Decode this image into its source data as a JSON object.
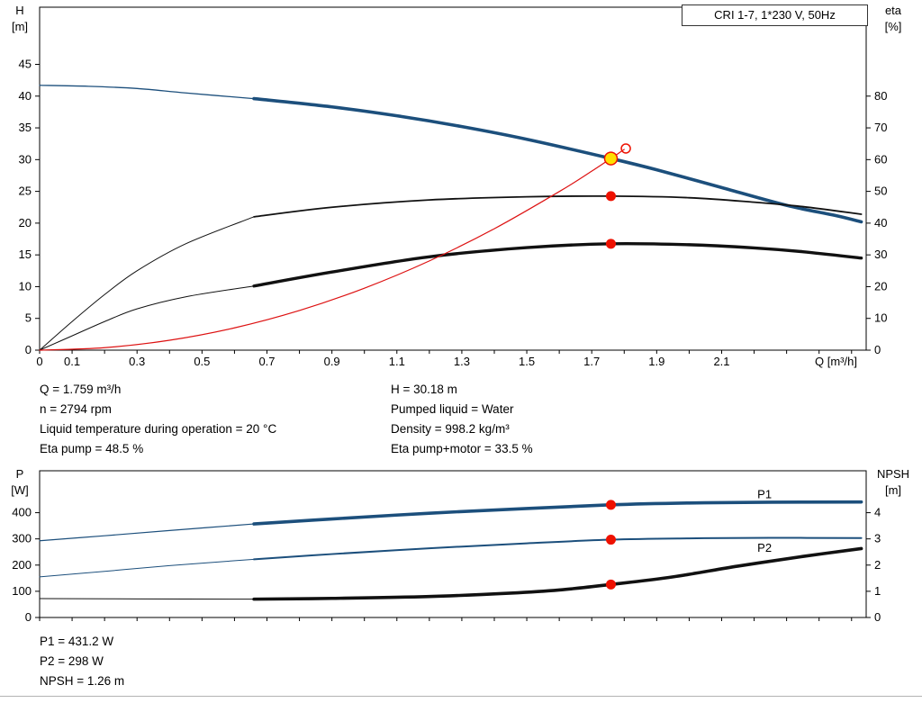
{
  "header": {
    "model_box": "CRI 1-7, 1*230 V, 50Hz"
  },
  "duty_info_top": {
    "left": [
      "Q = 1.759 m³/h",
      "n = 2794 rpm",
      "Liquid temperature during operation = 20 °C",
      "Eta pump = 48.5 %"
    ],
    "right": [
      "H = 30.18 m",
      "Pumped liquid = Water",
      "Density = 998.2 kg/m³",
      "Eta pump+motor = 33.5 %"
    ]
  },
  "duty_info_bottom": [
    "P1 = 431.2 W",
    "P2 = 298 W",
    "NPSH = 1.26 m"
  ],
  "chart_data": [
    {
      "name": "qh-eta-chart",
      "type": "line",
      "title": "CRI 1-7, 1*230 V, 50Hz",
      "grid": false,
      "x_axis": {
        "min": 0,
        "max": 2.545,
        "ticks": [
          0,
          0.1,
          0.2,
          0.3,
          0.4,
          0.5,
          0.6,
          0.7,
          0.8,
          0.9,
          1,
          1.1,
          1.2,
          1.3,
          1.4,
          1.5,
          1.6,
          1.7,
          1.8,
          1.9,
          2,
          2.1,
          2.2,
          2.3,
          2.4,
          2.5
        ],
        "labels": [
          {
            "v": 0,
            "text": "0"
          },
          {
            "v": 0.1,
            "text": "0.1"
          },
          {
            "v": 0.3,
            "text": "0.3"
          },
          {
            "v": 0.5,
            "text": "0.5"
          },
          {
            "v": 0.7,
            "text": "0.7"
          },
          {
            "v": 0.9,
            "text": "0.9"
          },
          {
            "v": 1.1,
            "text": "1.1"
          },
          {
            "v": 1.3,
            "text": "1.3"
          },
          {
            "v": 1.5,
            "text": "1.5"
          },
          {
            "v": 1.7,
            "text": "1.7"
          },
          {
            "v": 1.9,
            "text": "1.9"
          },
          {
            "v": 2.1,
            "text": "2.1"
          }
        ],
        "title": "Q [m³/h]"
      },
      "left_axis": {
        "min": 0,
        "max": 54,
        "ticks": [
          0,
          5,
          10,
          15,
          20,
          25,
          30,
          35,
          40,
          45
        ],
        "title": [
          "H",
          "[m]"
        ]
      },
      "right_axis": {
        "min": 0,
        "max": 108,
        "ticks": [
          0,
          10,
          20,
          30,
          40,
          50,
          60,
          70,
          80
        ],
        "title": [
          "eta",
          "[%]"
        ]
      },
      "series": [
        {
          "name": "qh-curve-thin",
          "axis": "left",
          "color": "#1c4f7c",
          "width": 1.3,
          "points": [
            [
              0,
              41.7
            ],
            [
              0.15,
              41.55
            ],
            [
              0.3,
              41.2
            ],
            [
              0.45,
              40.5
            ],
            [
              0.66,
              39.6
            ]
          ]
        },
        {
          "name": "qh-curve",
          "axis": "left",
          "color": "#1c4f7c",
          "width": 3.6,
          "points": [
            [
              0.66,
              39.6
            ],
            [
              0.9,
              38.3
            ],
            [
              1.1,
              36.9
            ],
            [
              1.3,
              35.2
            ],
            [
              1.5,
              33.2
            ],
            [
              1.759,
              30.18
            ],
            [
              1.9,
              28.4
            ],
            [
              2.1,
              25.6
            ],
            [
              2.3,
              22.8
            ],
            [
              2.45,
              21.2
            ],
            [
              2.53,
              20.2
            ]
          ]
        },
        {
          "name": "eta-pump-curve-thin",
          "axis": "right",
          "color": "#111111",
          "width": 1,
          "points": [
            [
              0,
              0
            ],
            [
              0.1,
              9
            ],
            [
              0.2,
              17.5
            ],
            [
              0.3,
              25
            ],
            [
              0.45,
              33.5
            ],
            [
              0.66,
              42
            ]
          ]
        },
        {
          "name": "eta-pump-curve",
          "axis": "right",
          "color": "#111111",
          "width": 1.8,
          "points": [
            [
              0.66,
              42
            ],
            [
              0.9,
              45
            ],
            [
              1.2,
              47.3
            ],
            [
              1.5,
              48.3
            ],
            [
              1.759,
              48.5
            ],
            [
              2.0,
              48
            ],
            [
              2.2,
              46.6
            ],
            [
              2.35,
              45.2
            ],
            [
              2.53,
              42.8
            ]
          ]
        },
        {
          "name": "eta-pump-motor-curve-thin",
          "axis": "right",
          "color": "#111111",
          "width": 1,
          "points": [
            [
              0,
              0
            ],
            [
              0.1,
              4.5
            ],
            [
              0.2,
              9
            ],
            [
              0.3,
              13
            ],
            [
              0.45,
              16.8
            ],
            [
              0.66,
              20.2
            ]
          ]
        },
        {
          "name": "eta-pump-motor-curve",
          "axis": "right",
          "color": "#111111",
          "width": 3.4,
          "points": [
            [
              0.66,
              20.2
            ],
            [
              0.9,
              24.6
            ],
            [
              1.2,
              29.4
            ],
            [
              1.5,
              32.3
            ],
            [
              1.759,
              33.5
            ],
            [
              2.0,
              33.2
            ],
            [
              2.2,
              32.2
            ],
            [
              2.35,
              31
            ],
            [
              2.53,
              29
            ]
          ]
        },
        {
          "name": "system-curve",
          "axis": "left",
          "color": "#dd1111",
          "width": 1.2,
          "points": [
            [
              0,
              0
            ],
            [
              0.2,
              0.39
            ],
            [
              0.4,
              1.56
            ],
            [
              0.6,
              3.51
            ],
            [
              0.8,
              6.24
            ],
            [
              1.0,
              9.76
            ],
            [
              1.2,
              14.05
            ],
            [
              1.4,
              19.12
            ],
            [
              1.6,
              24.97
            ],
            [
              1.7,
              28.19
            ],
            [
              1.8,
              31.6
            ]
          ]
        }
      ],
      "markers": [
        {
          "name": "system-curve-end-circle",
          "axis": "left",
          "x": 1.805,
          "y": 31.75,
          "r": 5,
          "fill": "none",
          "stroke": "#ee1100",
          "stroke_width": 1.5
        },
        {
          "name": "duty-point",
          "axis": "left",
          "x": 1.759,
          "y": 30.18,
          "r": 7,
          "fill": "#ffdf00",
          "stroke": "#ee1100",
          "stroke_width": 1.5
        },
        {
          "name": "eta-pump-point",
          "axis": "right",
          "x": 1.759,
          "y": 48.5,
          "r": 5.5,
          "fill": "#ee1100"
        },
        {
          "name": "eta-pump-motor-point",
          "axis": "right",
          "x": 1.759,
          "y": 33.5,
          "r": 5.5,
          "fill": "#ee1100"
        }
      ],
      "labels": []
    },
    {
      "name": "power-npsh-chart",
      "type": "line",
      "title": "",
      "grid": false,
      "x_axis": {
        "min": 0,
        "max": 2.545,
        "ticks": [
          0,
          0.1,
          0.2,
          0.3,
          0.4,
          0.5,
          0.6,
          0.7,
          0.8,
          0.9,
          1,
          1.1,
          1.2,
          1.3,
          1.4,
          1.5,
          1.6,
          1.7,
          1.8,
          1.9,
          2,
          2.1,
          2.2,
          2.3,
          2.4,
          2.5
        ],
        "labels": [],
        "title": ""
      },
      "left_axis": {
        "min": 0,
        "max": 560,
        "ticks": [
          0,
          100,
          200,
          300,
          400
        ],
        "title": [
          "P",
          "[W]"
        ]
      },
      "right_axis": {
        "min": 0,
        "max": 5.6,
        "ticks": [
          0,
          1,
          2,
          3,
          4
        ],
        "title": [
          "NPSH",
          "[m]"
        ]
      },
      "series": [
        {
          "name": "p1-curve-thin",
          "axis": "left",
          "color": "#1c4f7c",
          "width": 1.2,
          "points": [
            [
              0,
              293
            ],
            [
              0.2,
              312
            ],
            [
              0.4,
              332
            ],
            [
              0.66,
              357
            ]
          ]
        },
        {
          "name": "p1-curve",
          "axis": "left",
          "color": "#1c4f7c",
          "width": 3.6,
          "points": [
            [
              0.66,
              357
            ],
            [
              0.9,
              376
            ],
            [
              1.2,
              398
            ],
            [
              1.5,
              416
            ],
            [
              1.759,
              430
            ],
            [
              2.0,
              437
            ],
            [
              2.25,
              440
            ],
            [
              2.53,
              441
            ]
          ]
        },
        {
          "name": "p2-curve-thin",
          "axis": "left",
          "color": "#1c4f7c",
          "width": 1,
          "points": [
            [
              0,
              155
            ],
            [
              0.2,
              176
            ],
            [
              0.4,
              198
            ],
            [
              0.66,
              222
            ]
          ]
        },
        {
          "name": "p2-curve",
          "axis": "left",
          "color": "#1c4f7c",
          "width": 2,
          "points": [
            [
              0.66,
              222
            ],
            [
              0.9,
              242
            ],
            [
              1.2,
              264
            ],
            [
              1.5,
              283
            ],
            [
              1.759,
              297
            ],
            [
              2.0,
              302
            ],
            [
              2.25,
              304
            ],
            [
              2.53,
              303
            ]
          ]
        },
        {
          "name": "npsh-curve-thin",
          "axis": "right",
          "color": "#111111",
          "width": 1,
          "points": [
            [
              0,
              0.72
            ],
            [
              0.3,
              0.71
            ],
            [
              0.66,
              0.7
            ]
          ]
        },
        {
          "name": "npsh-curve",
          "axis": "right",
          "color": "#111111",
          "width": 3.6,
          "points": [
            [
              0.66,
              0.7
            ],
            [
              0.9,
              0.73
            ],
            [
              1.2,
              0.8
            ],
            [
              1.45,
              0.93
            ],
            [
              1.6,
              1.05
            ],
            [
              1.759,
              1.26
            ],
            [
              1.95,
              1.55
            ],
            [
              2.15,
              1.96
            ],
            [
              2.35,
              2.33
            ],
            [
              2.53,
              2.63
            ]
          ]
        }
      ],
      "markers": [
        {
          "name": "p1-point",
          "axis": "left",
          "x": 1.759,
          "y": 430,
          "r": 5.5,
          "fill": "#ee1100"
        },
        {
          "name": "p2-point",
          "axis": "left",
          "x": 1.759,
          "y": 297,
          "r": 5.5,
          "fill": "#ee1100"
        },
        {
          "name": "npsh-point",
          "axis": "right",
          "x": 1.759,
          "y": 1.26,
          "r": 5.5,
          "fill": "#ee1100"
        }
      ],
      "labels": [
        {
          "name": "p1-label",
          "text": "P1",
          "axis": "left",
          "x": 2.21,
          "y": 455,
          "color": "#1c4f7c"
        },
        {
          "name": "p2-label",
          "text": "P2",
          "axis": "left",
          "x": 2.21,
          "y": 250,
          "color": "#1c4f7c"
        }
      ]
    }
  ]
}
